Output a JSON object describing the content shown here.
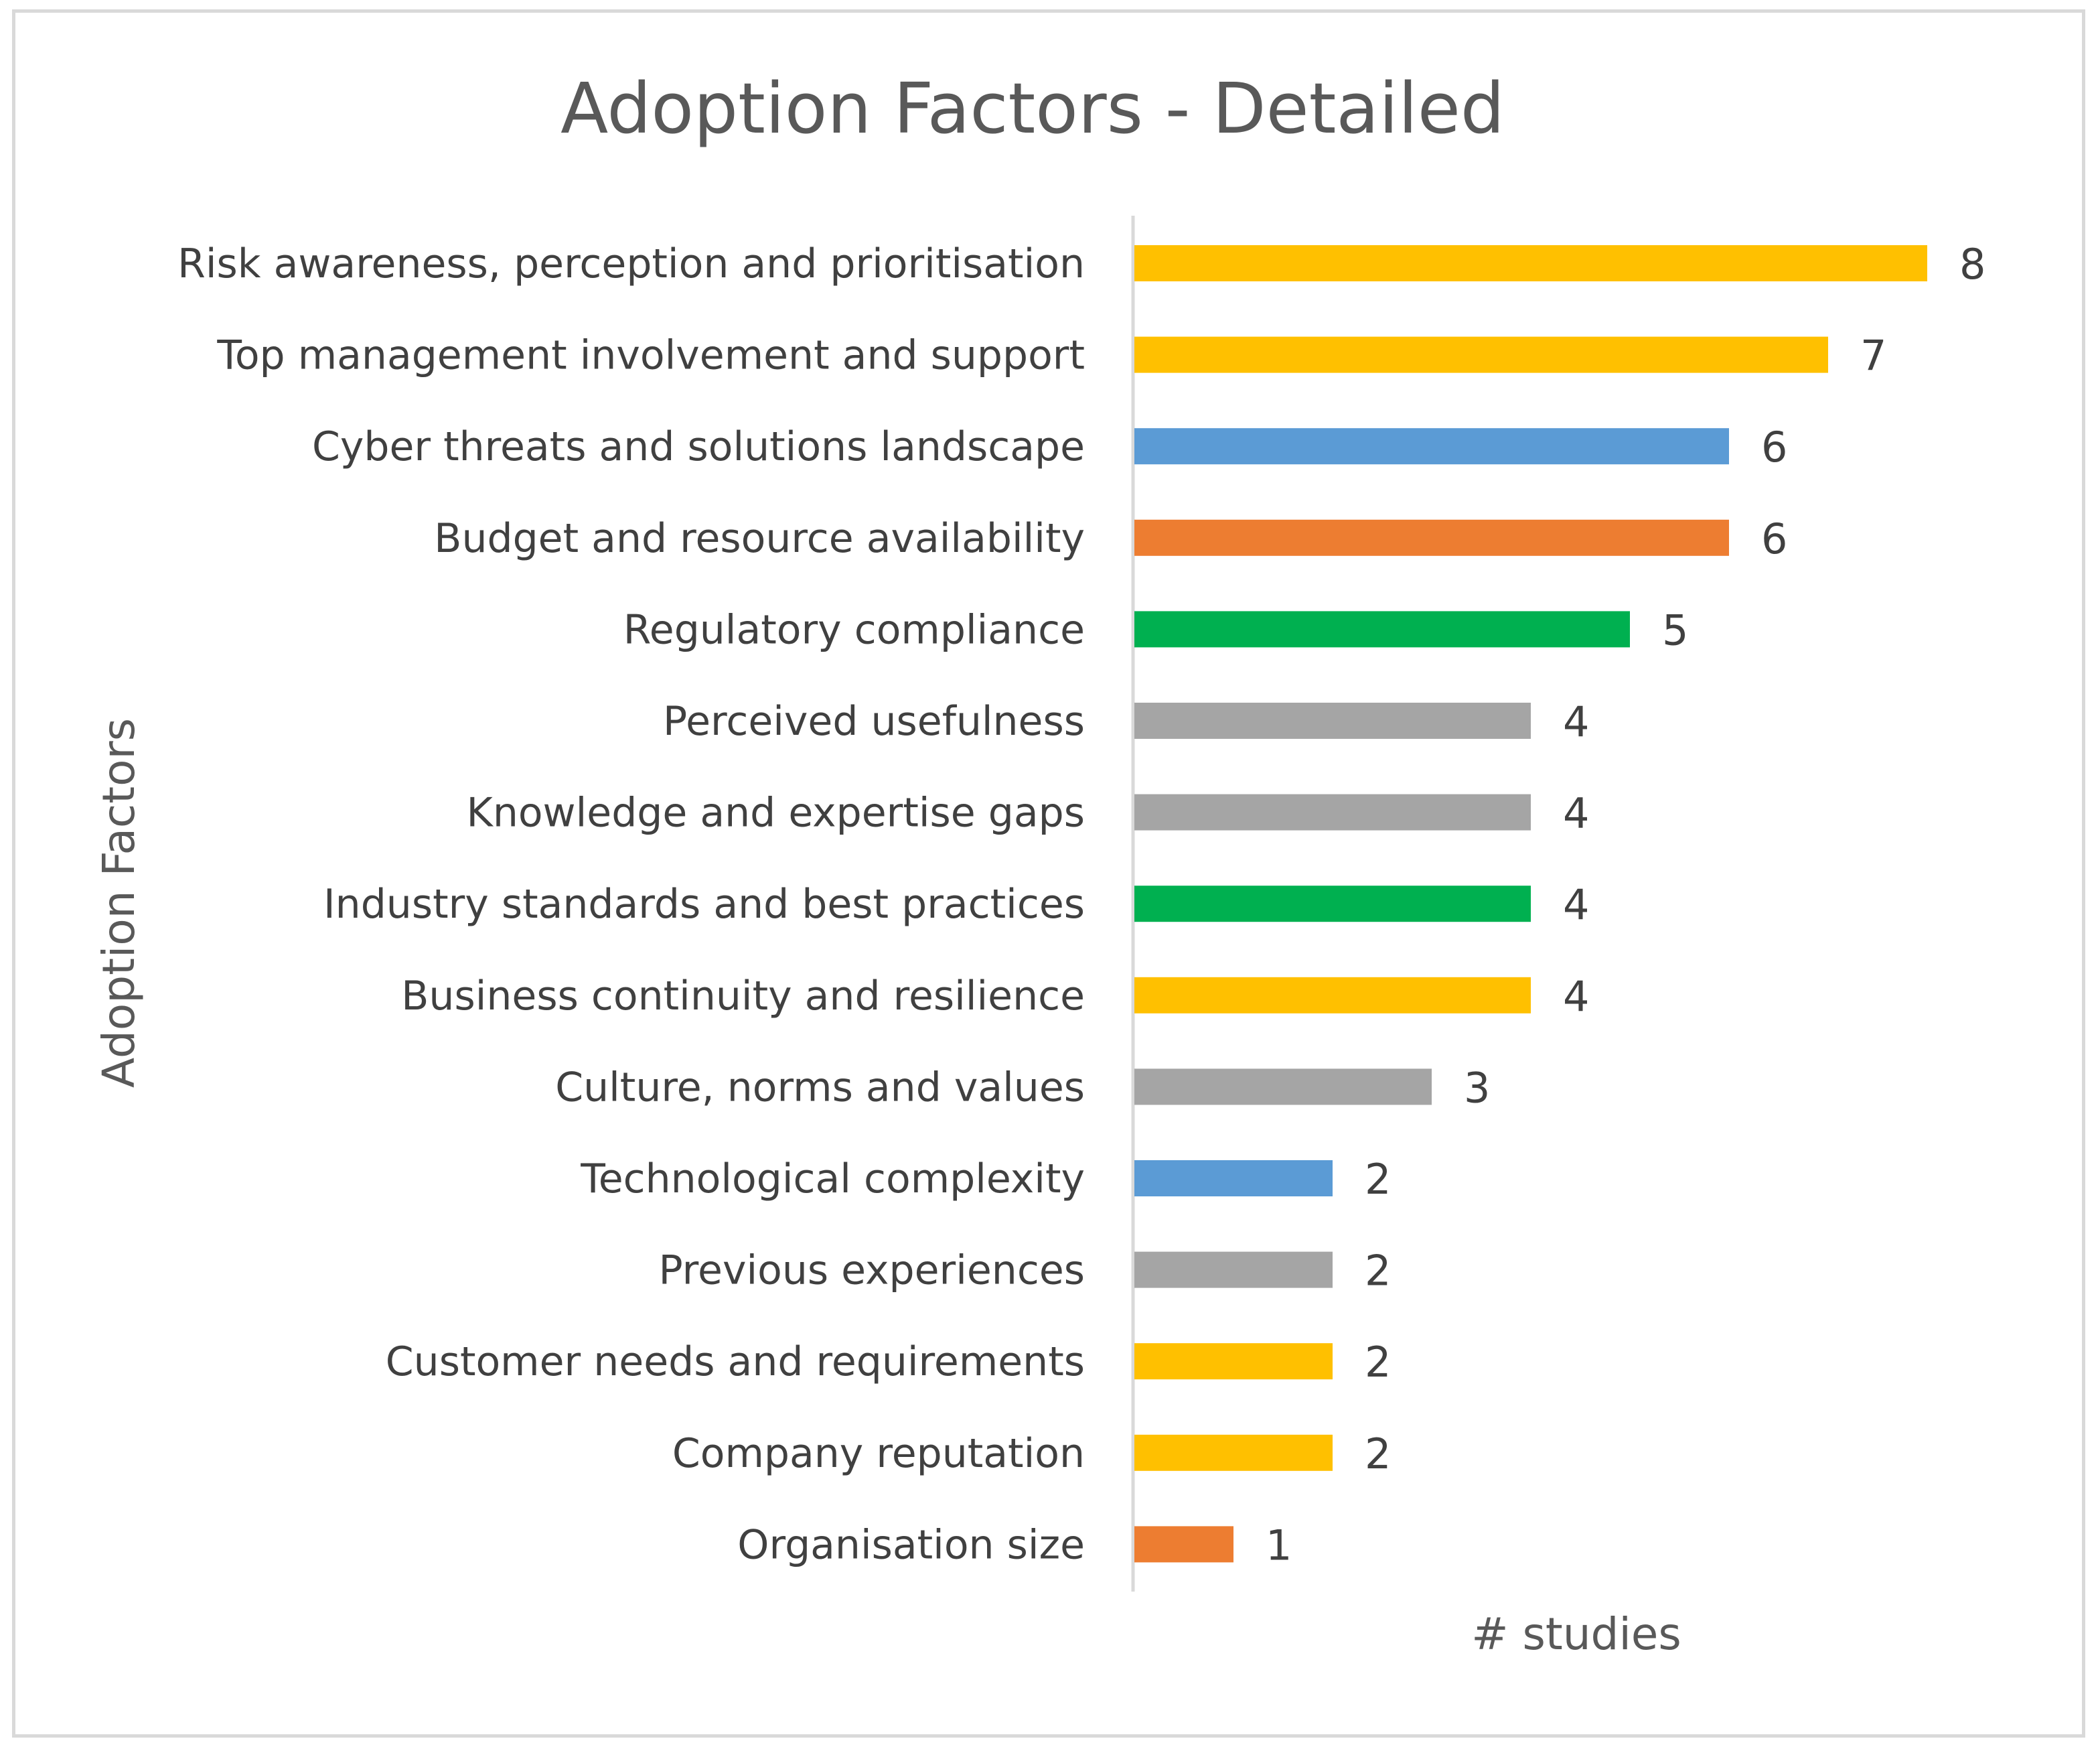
{
  "chart_data": {
    "type": "bar",
    "orientation": "horizontal",
    "title": "Adoption Factors - Detailed",
    "xlabel": "# studies",
    "ylabel": "Adoption Factors",
    "xlim": [
      0,
      8
    ],
    "grid": false,
    "legend": "none",
    "categories": [
      "Risk awareness, perception and prioritisation",
      "Top management involvement and support",
      "Cyber threats and solutions landscape",
      "Budget and resource availability",
      "Regulatory compliance",
      "Perceived usefulness",
      "Knowledge and expertise gaps",
      "Industry standards and best practices",
      "Business continuity and resilience",
      "Culture, norms and values",
      "Technological complexity",
      "Previous experiences",
      "Customer needs and requirements",
      "Company reputation",
      "Organisation size"
    ],
    "values": [
      8,
      7,
      6,
      6,
      5,
      4,
      4,
      4,
      4,
      3,
      2,
      2,
      2,
      2,
      1
    ],
    "value_labels": [
      "8",
      "7",
      "6",
      "6",
      "5",
      "4",
      "4",
      "4",
      "4",
      "3",
      "2",
      "2",
      "2",
      "2",
      "1"
    ],
    "colors": [
      "#FFC000",
      "#FFC000",
      "#5B9BD5",
      "#ED7D31",
      "#00B050",
      "#A5A5A5",
      "#A5A5A5",
      "#00B050",
      "#FFC000",
      "#A5A5A5",
      "#5B9BD5",
      "#A5A5A5",
      "#FFC000",
      "#FFC000",
      "#ED7D31"
    ]
  }
}
